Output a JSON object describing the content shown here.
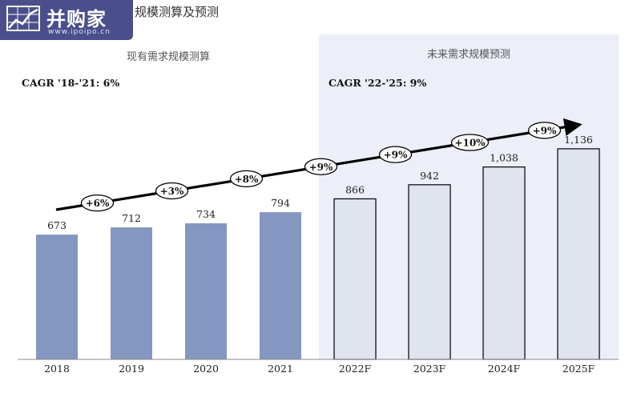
{
  "logo": {
    "name": "并购家",
    "url": "www.ipoipo.cn"
  },
  "header": {
    "title_visible_part": "规模测算及预测"
  },
  "panels": [
    {
      "label": "现有需求规模测算",
      "cagr": "CAGR '18-'21: 6%"
    },
    {
      "label": "未来需求规模预测",
      "cagr": "CAGR '22-'25: 9%"
    }
  ],
  "colors": {
    "actual_bar": "#8497c0",
    "forecast_bar": "#dfe4ef",
    "forecast_panel_bg": "#eceef8",
    "actual_panel_bg": "#ffffff",
    "arrow": "#000000",
    "logo_bg": "#4a4f8c"
  },
  "chart_data": {
    "type": "bar",
    "categories": [
      "2018",
      "2019",
      "2020",
      "2021",
      "2022F",
      "2023F",
      "2024F",
      "2025F"
    ],
    "values": [
      673,
      712,
      734,
      794,
      866,
      942,
      1038,
      1136
    ],
    "value_labels": [
      "673",
      "712",
      "734",
      "794",
      "866",
      "942",
      "1,038",
      "1,136"
    ],
    "forecast_flags": [
      false,
      false,
      false,
      false,
      true,
      true,
      true,
      true
    ],
    "growth_labels": [
      "+6%",
      "+3%",
      "+8%",
      "+9%",
      "+9%",
      "+10%",
      "+9%"
    ],
    "ylim": [
      0,
      1600
    ],
    "grid": false,
    "legend": "none"
  }
}
